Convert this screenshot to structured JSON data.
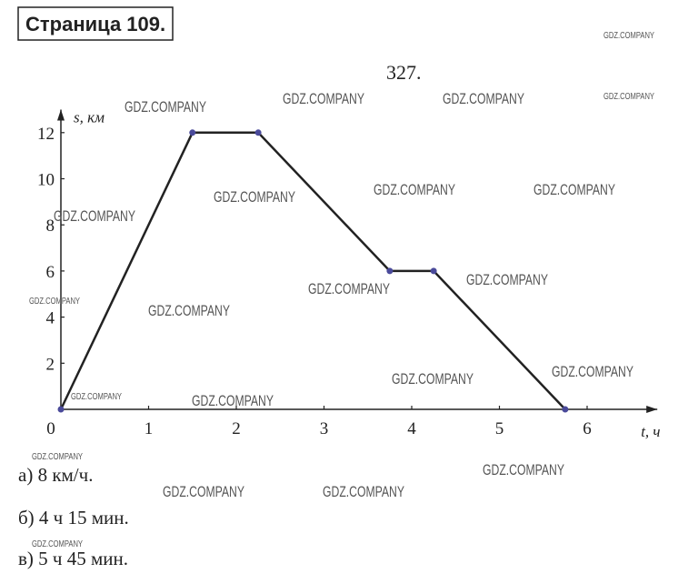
{
  "header": {
    "title": "Страница 109."
  },
  "problem": "327.",
  "chart_data": {
    "type": "line",
    "x_label": "t, ч",
    "y_label": "s, км",
    "x": [
      0,
      1.5,
      2.25,
      3.75,
      4.25,
      5.75
    ],
    "values": [
      0,
      12,
      12,
      6,
      6,
      0
    ],
    "color": "#222222",
    "point_color": "#4a4a9a",
    "xlim": [
      0,
      6.8
    ],
    "ylim": [
      0,
      13
    ],
    "xticks": [
      0,
      1,
      2,
      3,
      4,
      5,
      6
    ],
    "yticks": [
      2,
      4,
      6,
      8,
      10,
      12
    ]
  },
  "answers": [
    "а) 8  км/ч.",
    "б) 4 ч 15 мин.",
    "в) 5 ч 45 мин."
  ],
  "watermark": "GDZ.COMPANY"
}
